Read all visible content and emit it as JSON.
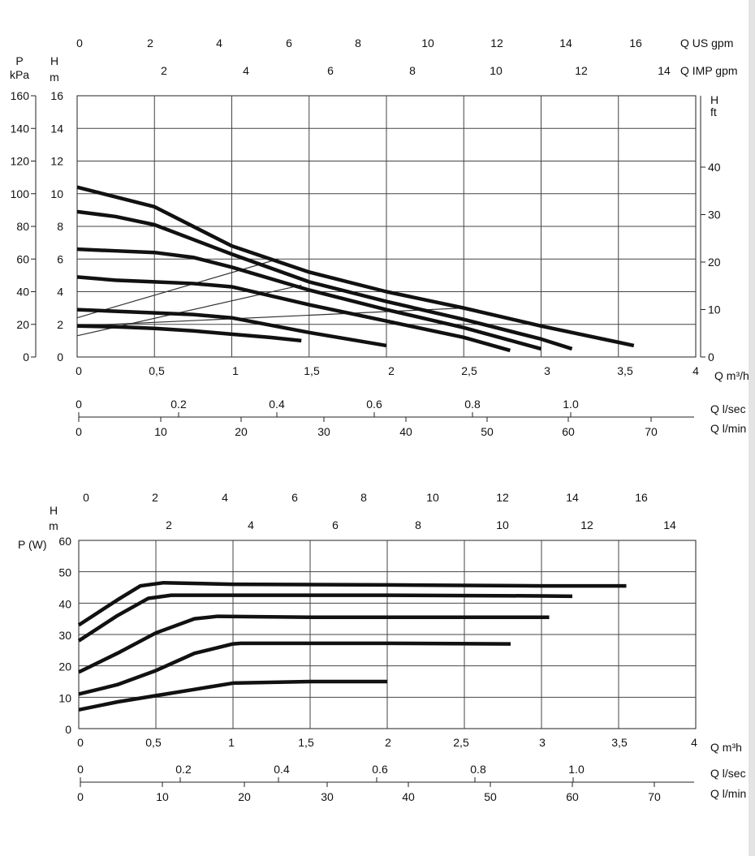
{
  "chart_data": [
    {
      "type": "line",
      "ylabel_left_pressure": "P",
      "ylabel_left_pressure_unit": "kPa",
      "ylabel_left_head": "H",
      "ylabel_left_head_unit": "m",
      "ylabel_right": "H",
      "ylabel_right_unit": "ft",
      "xlabel": "Q m³/h",
      "top_axis_usgpm_label": "Q US gpm",
      "top_axis_impgpm_label": "Q IMP gpm",
      "bottom_axis_lsec_label": "Q l/sec",
      "bottom_axis_lmin_label": "Q l/min",
      "xlim": [
        0,
        4
      ],
      "ylim": [
        0,
        16
      ],
      "x_ticks": [
        "0",
        "0,5",
        "1",
        "1,5",
        "2",
        "2,5",
        "3",
        "3,5",
        "4"
      ],
      "y_ticks_m": [
        "0",
        "2",
        "4",
        "6",
        "8",
        "10",
        "12",
        "14",
        "16"
      ],
      "y_ticks_kpa": [
        "0",
        "20",
        "40",
        "60",
        "80",
        "100",
        "120",
        "140",
        "160"
      ],
      "y_ticks_ft": [
        "0",
        "10",
        "20",
        "30",
        "40"
      ],
      "top_usgpm_ticks": [
        "0",
        "2",
        "4",
        "6",
        "8",
        "10",
        "12",
        "14",
        "16"
      ],
      "top_impgpm_ticks": [
        "2",
        "4",
        "6",
        "8",
        "10",
        "12",
        "14"
      ],
      "bottom_lsec_ticks": [
        "0",
        "0.2",
        "0.4",
        "0.6",
        "0.8",
        "1.0"
      ],
      "bottom_lmin_ticks": [
        "0",
        "10",
        "20",
        "30",
        "40",
        "50",
        "60",
        "70"
      ],
      "series": [
        {
          "x": [
            0,
            0.5,
            1,
            1.5,
            2,
            2.5,
            3,
            3.5,
            3.6
          ],
          "y": [
            10.4,
            9.2,
            6.8,
            5.2,
            4.0,
            3.0,
            1.9,
            0.9,
            0.7
          ]
        },
        {
          "x": [
            0,
            0.25,
            0.5,
            1,
            1.5,
            2,
            2.5,
            3,
            3.2
          ],
          "y": [
            8.9,
            8.6,
            8.1,
            6.3,
            4.6,
            3.4,
            2.3,
            1.1,
            0.5
          ]
        },
        {
          "x": [
            0,
            0.25,
            0.5,
            0.75,
            1,
            1.5,
            2,
            2.5,
            3.0
          ],
          "y": [
            6.6,
            6.5,
            6.4,
            6.1,
            5.5,
            4.1,
            2.9,
            1.8,
            0.5
          ]
        },
        {
          "x": [
            0,
            0.25,
            0.5,
            0.75,
            1,
            1.5,
            2,
            2.5,
            2.8
          ],
          "y": [
            4.9,
            4.7,
            4.6,
            4.5,
            4.3,
            3.2,
            2.2,
            1.2,
            0.4
          ]
        },
        {
          "x": [
            0,
            0.25,
            0.5,
            0.75,
            1,
            1.5,
            2.0
          ],
          "y": [
            2.9,
            2.8,
            2.7,
            2.6,
            2.4,
            1.5,
            0.7
          ]
        },
        {
          "x": [
            0,
            0.25,
            0.5,
            0.75,
            1,
            1.25,
            1.45
          ],
          "y": [
            1.9,
            1.85,
            1.75,
            1.6,
            1.4,
            1.2,
            1.0
          ]
        }
      ],
      "thin_lines": [
        {
          "x": [
            0,
            1.3
          ],
          "y": [
            2.4,
            6.0
          ]
        },
        {
          "x": [
            0,
            1.45
          ],
          "y": [
            1.3,
            4.4
          ]
        },
        {
          "x": [
            0,
            2.5
          ],
          "y": [
            1.9,
            3.0
          ]
        }
      ],
      "grid": true
    },
    {
      "type": "line",
      "ylabel_head": "H",
      "ylabel_head_unit": "m",
      "ylabel": "P (W)",
      "xlabel": "Q m³h",
      "bottom_axis_lsec_label": "Q l/sec",
      "bottom_axis_lmin_label": "Q l/min",
      "xlim": [
        0,
        4
      ],
      "ylim": [
        0,
        60
      ],
      "x_ticks": [
        "0",
        "0,5",
        "1",
        "1,5",
        "2",
        "2,5",
        "3",
        "3,5",
        "4"
      ],
      "y_ticks": [
        "0",
        "10",
        "20",
        "30",
        "40",
        "50",
        "60"
      ],
      "top_usgpm_ticks": [
        "0",
        "2",
        "4",
        "6",
        "8",
        "10",
        "12",
        "14",
        "16"
      ],
      "top_impgpm_ticks": [
        "2",
        "4",
        "6",
        "8",
        "10",
        "12",
        "14"
      ],
      "bottom_lsec_ticks": [
        "0",
        "0.2",
        "0.4",
        "0.6",
        "0.8",
        "1.0"
      ],
      "bottom_lmin_ticks": [
        "0",
        "10",
        "20",
        "30",
        "40",
        "50",
        "60",
        "70"
      ],
      "series": [
        {
          "x": [
            0,
            0.25,
            0.4,
            0.55,
            1,
            2,
            3,
            3.55
          ],
          "y": [
            33,
            41,
            45.5,
            46.5,
            46,
            45.8,
            45.5,
            45.5
          ]
        },
        {
          "x": [
            0,
            0.25,
            0.45,
            0.6,
            1,
            2,
            3,
            3.2
          ],
          "y": [
            28,
            36,
            41.5,
            42.5,
            42.5,
            42.5,
            42.3,
            42.2
          ]
        },
        {
          "x": [
            0,
            0.25,
            0.5,
            0.75,
            0.9,
            1.5,
            2.5,
            3.05
          ],
          "y": [
            18,
            24,
            30.5,
            35,
            35.8,
            35.5,
            35.5,
            35.5
          ]
        },
        {
          "x": [
            0,
            0.25,
            0.5,
            0.75,
            1,
            1.05,
            2,
            2.8
          ],
          "y": [
            11,
            14,
            18.5,
            24,
            27,
            27.2,
            27.2,
            27.0
          ]
        },
        {
          "x": [
            0,
            0.25,
            0.5,
            0.75,
            1,
            1.5,
            2.0
          ],
          "y": [
            6,
            8.5,
            10.5,
            12.5,
            14.5,
            15,
            15
          ]
        }
      ],
      "grid": true
    }
  ]
}
